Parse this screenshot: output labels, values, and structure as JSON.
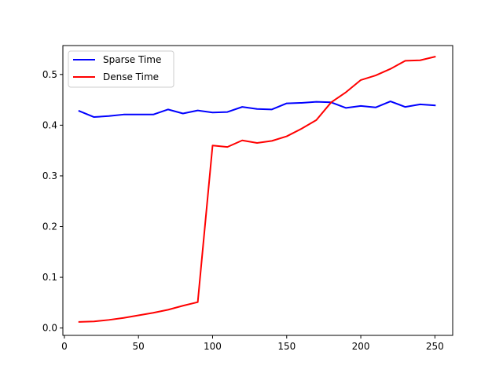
{
  "chart_data": {
    "type": "line",
    "title": "",
    "xlabel": "",
    "ylabel": "",
    "xlim": [
      -1,
      262
    ],
    "ylim": [
      -0.0145,
      0.557
    ],
    "xticks": [
      0,
      50,
      100,
      150,
      200,
      250
    ],
    "yticks": [
      0.0,
      0.1,
      0.2,
      0.3,
      0.4,
      0.5
    ],
    "grid": false,
    "legend": {
      "placement": "top-left"
    },
    "x": [
      10,
      20,
      30,
      40,
      50,
      60,
      70,
      80,
      90,
      100,
      110,
      120,
      130,
      140,
      150,
      160,
      170,
      180,
      190,
      200,
      210,
      220,
      230,
      240,
      250
    ],
    "series": [
      {
        "name": "Sparse Time",
        "color": "#0000ff",
        "values": [
          0.428,
          0.416,
          0.418,
          0.421,
          0.421,
          0.421,
          0.431,
          0.423,
          0.429,
          0.425,
          0.426,
          0.436,
          0.432,
          0.431,
          0.443,
          0.444,
          0.446,
          0.445,
          0.434,
          0.438,
          0.435,
          0.447,
          0.436,
          0.441,
          0.439
        ]
      },
      {
        "name": "Dense Time",
        "color": "#ff0000",
        "values": [
          0.012,
          0.013,
          0.016,
          0.02,
          0.025,
          0.03,
          0.036,
          0.044,
          0.051,
          0.36,
          0.357,
          0.37,
          0.365,
          0.369,
          0.378,
          0.393,
          0.41,
          0.445,
          0.465,
          0.489,
          0.498,
          0.511,
          0.527,
          0.528,
          0.535
        ]
      }
    ]
  }
}
